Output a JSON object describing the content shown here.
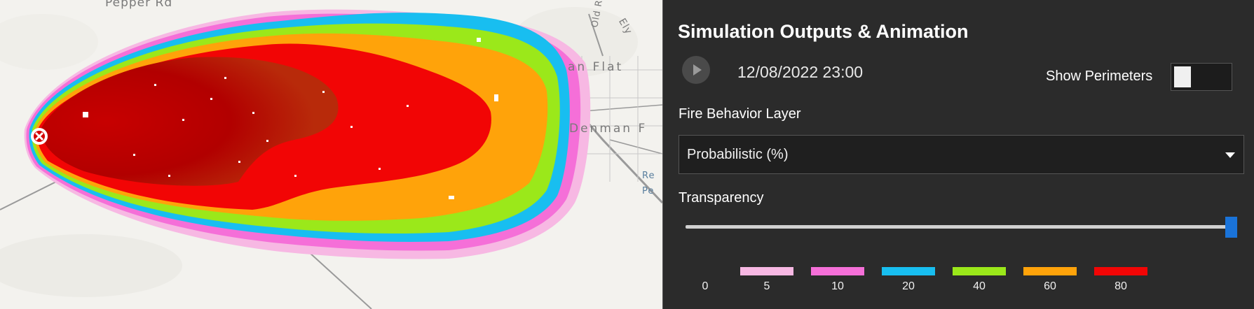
{
  "map": {
    "labels": {
      "road_top": "Pepper Rd",
      "place_flat": "an Flat",
      "place_denman": "Denman F",
      "place_ely": "Ely",
      "place_old": "Old R",
      "place_re": "Re",
      "place_pe": "Pe"
    },
    "ignition_icon": "ignition-point-icon"
  },
  "panel": {
    "title": "Simulation Outputs & Animation",
    "play_icon": "play-icon",
    "timestamp": "12/08/2022 23:00",
    "show_perimeters_label": "Show Perimeters",
    "show_perimeters_on": false,
    "layer_label": "Fire Behavior Layer",
    "layer_selected": "Probabilistic (%)",
    "transparency_label": "Transparency",
    "transparency_value": 1.0,
    "legend": {
      "zero_label": "0",
      "items": [
        {
          "label": "5",
          "color": "#f7b8e3"
        },
        {
          "label": "10",
          "color": "#f56fd8"
        },
        {
          "label": "20",
          "color": "#18bef0"
        },
        {
          "label": "40",
          "color": "#9be81a"
        },
        {
          "label": "60",
          "color": "#ffa30a"
        },
        {
          "label": "80",
          "color": "#f20505"
        }
      ]
    }
  },
  "colors": {
    "panel_bg": "#2b2b2b",
    "accent": "#1a73d9",
    "fire_core": "#b30000",
    "fire_red": "#f20505",
    "fire_orange": "#ffa30a",
    "fire_green": "#9be81a",
    "fire_cyan": "#18bef0",
    "fire_magenta": "#f56fd8",
    "fire_pink": "#f7b8e3"
  }
}
